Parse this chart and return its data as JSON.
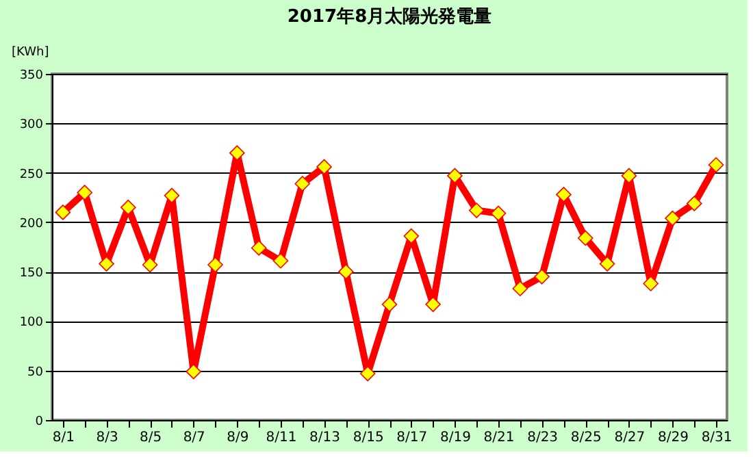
{
  "chart_data": {
    "type": "line",
    "title": "2017年8月太陽光発電量",
    "ylabel": "[KWh]",
    "categories": [
      "8/1",
      null,
      "8/3",
      null,
      "8/5",
      null,
      "8/7",
      null,
      "8/9",
      null,
      "8/11",
      null,
      "8/13",
      null,
      "8/15",
      null,
      "8/17",
      null,
      "8/19",
      null,
      "8/21",
      null,
      "8/23",
      null,
      "8/25",
      null,
      "8/27",
      null,
      "8/29",
      null,
      "8/31"
    ],
    "series": [
      {
        "color": "#ff0000",
        "values": [
          210,
          230,
          158,
          215,
          157,
          227,
          49,
          157,
          270,
          174,
          161,
          239,
          256,
          150,
          47,
          117,
          186,
          117,
          247,
          212,
          209,
          133,
          145,
          228,
          184,
          158,
          247,
          138,
          204,
          219,
          258
        ]
      }
    ],
    "ylim": [
      0,
      350
    ],
    "yticks": [
      0,
      50,
      100,
      150,
      200,
      250,
      300,
      350
    ],
    "grid": "y",
    "marker": "diamond",
    "line_style": "solid"
  }
}
